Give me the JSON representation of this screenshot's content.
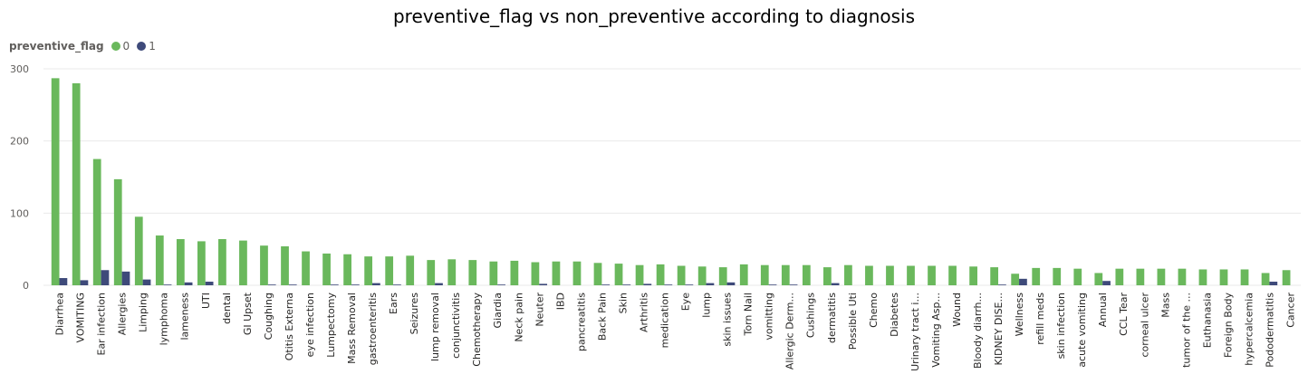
{
  "chart_data": {
    "type": "bar",
    "title": "preventive_flag vs non_preventive according to diagnosis",
    "legend": {
      "title": "preventive_flag",
      "placement": "top-left"
    },
    "xlabel": "",
    "ylabel": "",
    "ylim": [
      0,
      300
    ],
    "yticks": [
      "0",
      "100",
      "200",
      "300"
    ],
    "grid": true,
    "categories": [
      "Diarrhea",
      "VOMITING",
      "Ear infection",
      "Allergies",
      "Limping",
      "lymphoma",
      "lameness",
      "UTI",
      "dental",
      "GI Upset",
      "Coughing",
      "Otitis Externa",
      "eye infection",
      "Lumpectomy",
      "Mass Removal",
      "gastroenteritis",
      "Ears",
      "Seizures",
      "lump removal",
      "conjunctivitis",
      "Chemotherapy",
      "Giardia",
      "Neck pain",
      "Neuter",
      "IBD",
      "pancreatitis",
      "Back Pain",
      "Skin",
      "Arthritis",
      "medication",
      "Eye",
      "lump",
      "skin issues",
      "Torn Nail",
      "vomitting",
      "Allergic Derm...",
      "Cushings",
      "dermatitis",
      "Possible Uti",
      "Chemo",
      "Diabetes",
      "Urinary tract i...",
      "Vomiting Asp...",
      "Wound",
      "Bloody diarrh...",
      "KIDNEY DISE...",
      "Wellness",
      "refill meds",
      "skin infection",
      "acute vomiting",
      "Annual",
      "CCL Tear",
      "corneal ulcer",
      "Mass",
      "tumor of the ...",
      "Euthanasia",
      "Foreign Body",
      "hypercalcemia",
      "Pododermatitis",
      "Cancer"
    ],
    "series": [
      {
        "name": "0",
        "color": "#6ab85c",
        "values": [
          287,
          280,
          175,
          147,
          95,
          69,
          64,
          61,
          64,
          62,
          55,
          54,
          47,
          44,
          43,
          40,
          40,
          41,
          35,
          36,
          35,
          33,
          34,
          32,
          33,
          33,
          31,
          30,
          28,
          29,
          27,
          26,
          25,
          29,
          28,
          28,
          28,
          25,
          28,
          27,
          27,
          27,
          27,
          27,
          26,
          25,
          16,
          24,
          24,
          23,
          17,
          23,
          23,
          23,
          23,
          22,
          22,
          22,
          17,
          21
        ]
      },
      {
        "name": "1",
        "color": "#3e4a7a",
        "values": [
          10,
          7,
          21,
          19,
          8,
          1,
          4,
          5,
          0,
          0,
          1,
          1,
          0,
          1,
          1,
          3,
          1,
          0,
          3,
          0,
          0,
          1,
          0,
          2,
          0,
          0,
          1,
          1,
          2,
          1,
          1,
          3,
          4,
          0,
          1,
          1,
          0,
          3,
          0,
          0,
          0,
          0,
          0,
          0,
          0,
          1,
          9,
          0,
          0,
          0,
          6,
          0,
          0,
          0,
          0,
          0,
          0,
          0,
          5,
          0
        ]
      }
    ]
  }
}
